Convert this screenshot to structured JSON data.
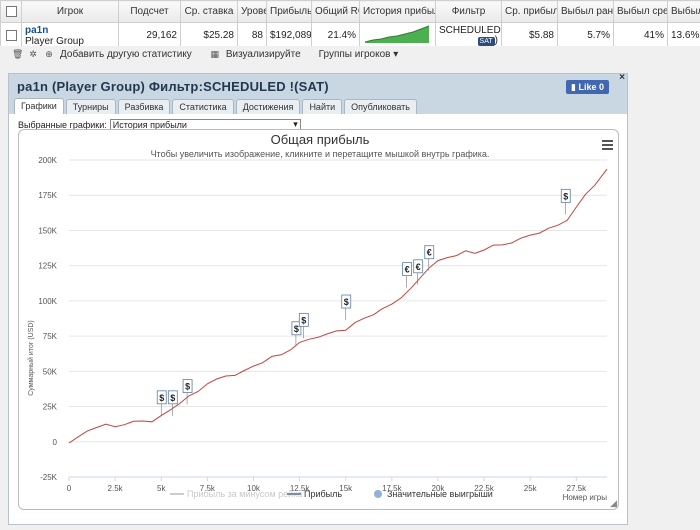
{
  "table": {
    "headers": [
      "Игрок",
      "Подсчет",
      "Ср. ставка",
      "Урове",
      "Прибыль",
      "Общий ROI",
      "История прибыли",
      "Фильтр",
      "Ср. прибыль",
      "Выбыл рано",
      "Выбыл средн",
      "Выбыл поз"
    ],
    "row": {
      "player_name": "pa1n",
      "player_group": "Player Group",
      "count": "29,162",
      "avg_stake": "$25.28",
      "level": "88",
      "profit": "$192,089",
      "roi": "21.4%",
      "filter_text": "SCHEDULED !(",
      "filter_badge": "SAT",
      "filter_close": ")",
      "avg_profit": "$5.88",
      "early": "5.7%",
      "mid": "41%",
      "late": "13.6%"
    }
  },
  "toolbar": {
    "add_stats": "Добавить другую статистику",
    "visualize": "Визуализируйте",
    "player_groups": "Группы игроков"
  },
  "panel": {
    "title": "pa1n (Player Group) Фильтр:SCHEDULED !(SAT)",
    "like_label": "Like 0",
    "close": "×",
    "tabs": [
      "Графики",
      "Турниры",
      "Разбивка",
      "Статистика",
      "Достижения",
      "Найти",
      "Опубликовать"
    ],
    "select_label": "Выбранные графики:",
    "select_value": "История прибыли",
    "colors": {
      "header_bg": "#c9d7e3",
      "like_bg": "#4267b2"
    }
  },
  "chart_data": {
    "type": "line",
    "title": "Общая прибыль",
    "subtitle": "Чтобы увеличить изображение, кликните и перетащите мышкой внутрь графика.",
    "ylabel": "Суммарный итог (USD)",
    "xlabel": "Номер игры",
    "xlim": [
      0,
      29162
    ],
    "ylim": [
      -25000,
      200000
    ],
    "x_ticks": [
      0,
      2500,
      5000,
      7500,
      10000,
      12500,
      15000,
      17500,
      20000,
      22500,
      25000,
      27500
    ],
    "x_tick_labels": [
      "0",
      "2.5k",
      "5k",
      "7.5k",
      "10k",
      "12.5k",
      "15k",
      "17.5k",
      "20k",
      "22.5k",
      "25k",
      "27.5k"
    ],
    "y_ticks": [
      -25000,
      0,
      25000,
      50000,
      75000,
      100000,
      125000,
      150000,
      175000,
      200000
    ],
    "y_tick_labels": [
      "-25K",
      "0",
      "25K",
      "50K",
      "75K",
      "100K",
      "125K",
      "150K",
      "175K",
      "200K"
    ],
    "grid": "horizontal",
    "legend_placement": "bottom",
    "legend": [
      {
        "name": "Прибыль за минусом рейка",
        "color": "#cccccc",
        "kind": "line"
      },
      {
        "name": "Прибыль",
        "color": "#7a8ea8",
        "kind": "line"
      },
      {
        "name": "Значительные выигрыши",
        "color": "#8fb3d6",
        "kind": "circle"
      }
    ],
    "series": [
      {
        "name": "Прибыль",
        "color": "#c4433f",
        "x": [
          0,
          500,
          1000,
          1500,
          2000,
          2500,
          3000,
          3500,
          4000,
          4500,
          5000,
          5500,
          6000,
          6500,
          7000,
          7500,
          8000,
          8500,
          9000,
          9500,
          10000,
          10500,
          11000,
          11500,
          12000,
          12500,
          13000,
          13500,
          14000,
          14500,
          15000,
          15500,
          16000,
          16500,
          17000,
          17500,
          18000,
          18500,
          19000,
          19500,
          20000,
          20500,
          21000,
          21500,
          22000,
          22500,
          23000,
          23500,
          24000,
          24500,
          25000,
          25500,
          26000,
          26500,
          27000,
          27500,
          28000,
          28500,
          29162
        ],
        "y": [
          0,
          3000,
          8000,
          11000,
          12000,
          11000,
          13000,
          14000,
          15000,
          15000,
          18000,
          23000,
          28000,
          32000,
          36000,
          42000,
          44000,
          47000,
          48000,
          50000,
          54000,
          57000,
          60000,
          62000,
          66000,
          70000,
          73000,
          75000,
          76000,
          79000,
          80000,
          84000,
          88000,
          91000,
          94000,
          98000,
          103000,
          108000,
          116000,
          124000,
          128000,
          131000,
          133000,
          135000,
          134000,
          137000,
          139000,
          140000,
          142000,
          144000,
          147000,
          149000,
          151000,
          154000,
          158000,
          166000,
          176000,
          183000,
          193000
        ]
      }
    ],
    "big_wins": [
      {
        "x": 5000,
        "y": 17000,
        "symbol": "$"
      },
      {
        "x": 5600,
        "y": 17000,
        "symbol": "$"
      },
      {
        "x": 6400,
        "y": 25000,
        "symbol": "$"
      },
      {
        "x": 12300,
        "y": 66000,
        "symbol": "$"
      },
      {
        "x": 12700,
        "y": 72000,
        "symbol": "$"
      },
      {
        "x": 15000,
        "y": 85000,
        "symbol": "$"
      },
      {
        "x": 18300,
        "y": 108000,
        "symbol": "€"
      },
      {
        "x": 18900,
        "y": 110000,
        "symbol": "€"
      },
      {
        "x": 19500,
        "y": 120000,
        "symbol": "€"
      },
      {
        "x": 26900,
        "y": 160000,
        "symbol": "$"
      }
    ]
  }
}
